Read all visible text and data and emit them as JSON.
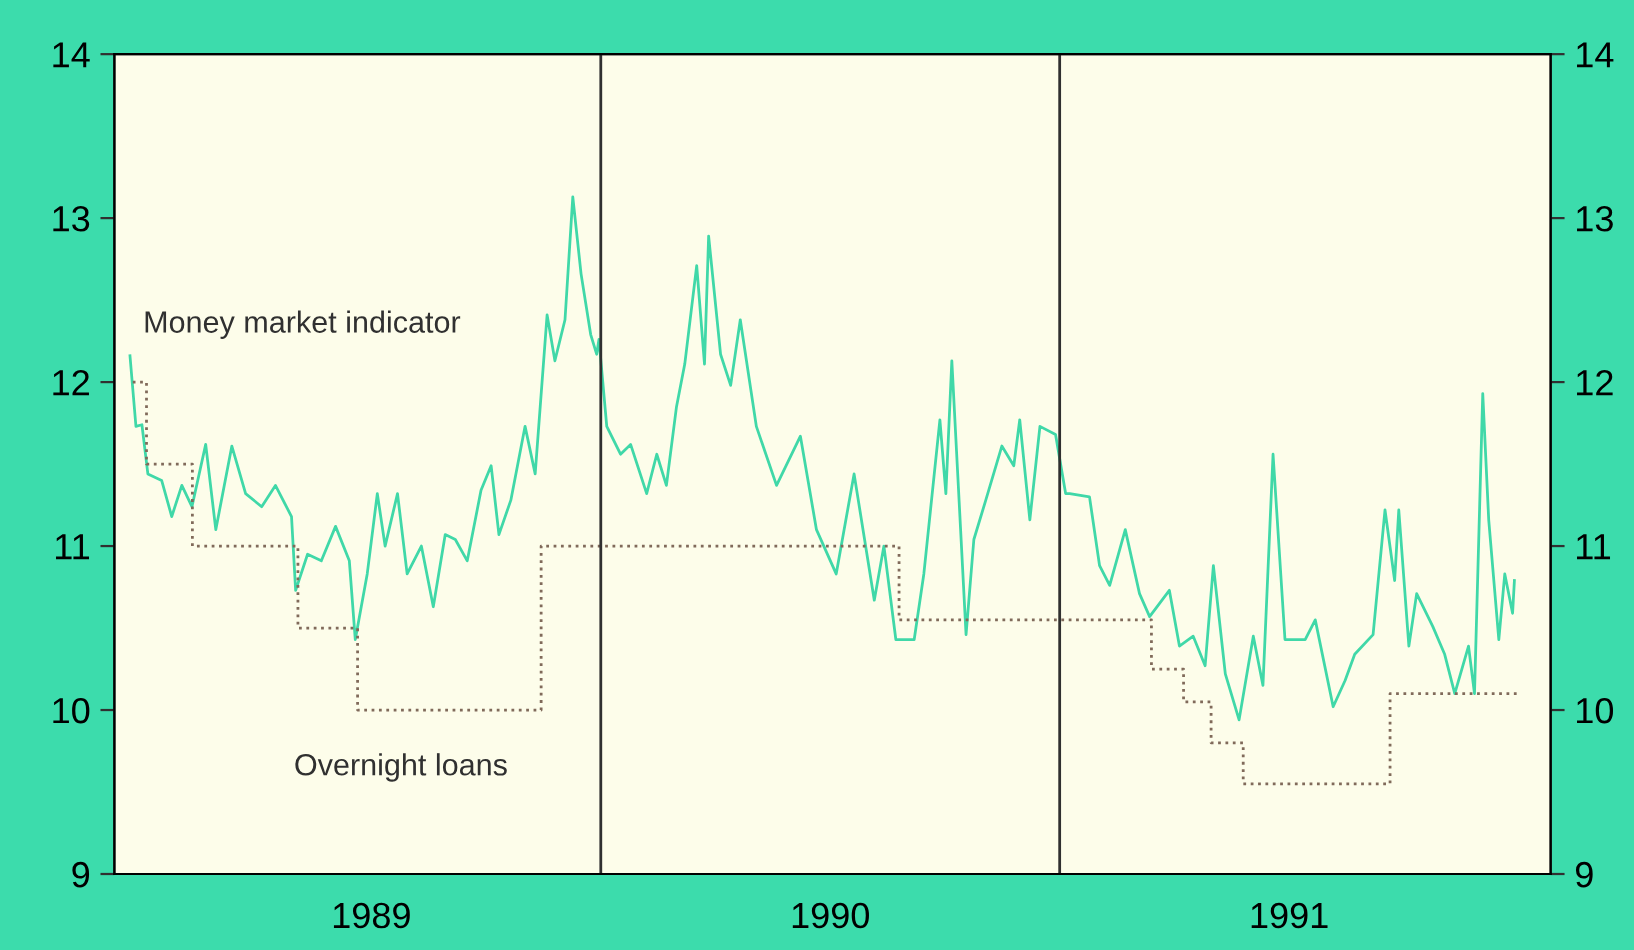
{
  "chart_data": {
    "type": "line",
    "xlim": [
      1988.94,
      1992.07
    ],
    "xticks": [
      {
        "value": 1989.5,
        "label": "1989"
      },
      {
        "value": 1990.5,
        "label": "1990"
      },
      {
        "value": 1991.5,
        "label": "1991"
      }
    ],
    "ylim": [
      9,
      14
    ],
    "yticks": [
      9,
      10,
      11,
      12,
      13,
      14
    ],
    "y2lim": [
      9,
      14
    ],
    "y2ticks": [
      9,
      10,
      11,
      12,
      13,
      14
    ],
    "grid": false,
    "legend": false,
    "marker": "none",
    "ref_lines": [
      {
        "axis": "x",
        "value": 1990,
        "label": null,
        "color": "#303030"
      },
      {
        "axis": "x",
        "value": 1991,
        "label": null,
        "color": "#303030"
      }
    ],
    "series": [
      {
        "name": "Money market indicator",
        "color": "#40d8a8",
        "line_style": "solid",
        "x": [
          1988.974,
          1988.987,
          1989.0,
          1989.013,
          1989.043,
          1989.065,
          1989.087,
          1989.109,
          1989.139,
          1989.161,
          1989.196,
          1989.226,
          1989.261,
          1989.291,
          1989.326,
          1989.335,
          1989.361,
          1989.391,
          1989.422,
          1989.452,
          1989.465,
          1989.491,
          1989.513,
          1989.53,
          1989.557,
          1989.578,
          1989.609,
          1989.635,
          1989.661,
          1989.683,
          1989.709,
          1989.739,
          1989.761,
          1989.778,
          1989.804,
          1989.835,
          1989.857,
          1989.883,
          1989.9,
          1989.922,
          1989.939,
          1989.957,
          1989.978,
          1989.991,
          1989.996,
          1990.013,
          1990.043,
          1990.065,
          1990.1,
          1990.122,
          1990.143,
          1990.165,
          1990.183,
          1990.209,
          1990.226,
          1990.235,
          1990.261,
          1990.283,
          1990.304,
          1990.339,
          1990.383,
          1990.435,
          1990.47,
          1990.513,
          1990.552,
          1990.596,
          1990.617,
          1990.643,
          1990.683,
          1990.704,
          1990.739,
          1990.752,
          1990.765,
          1990.796,
          1990.813,
          1990.839,
          1990.874,
          1990.9,
          1990.913,
          1990.935,
          1990.957,
          1990.991,
          1991.013,
          1991.022,
          1991.065,
          1991.087,
          1991.109,
          1991.143,
          1991.174,
          1991.196,
          1991.239,
          1991.261,
          1991.291,
          1991.317,
          1991.335,
          1991.361,
          1991.391,
          1991.422,
          1991.443,
          1991.465,
          1991.491,
          1991.535,
          1991.557,
          1991.596,
          1991.622,
          1991.643,
          1991.683,
          1991.709,
          1991.73,
          1991.739,
          1991.761,
          1991.778,
          1991.813,
          1991.839,
          1991.861,
          1991.891,
          1991.904,
          1991.922,
          1991.935,
          1991.957,
          1991.97,
          1991.987,
          1991.991
        ],
        "values": [
          12.16,
          11.73,
          11.74,
          11.44,
          11.4,
          11.18,
          11.37,
          11.24,
          11.62,
          11.1,
          11.61,
          11.32,
          11.24,
          11.37,
          11.18,
          10.73,
          10.95,
          10.91,
          11.12,
          10.91,
          10.43,
          10.83,
          11.32,
          11.0,
          11.32,
          10.83,
          11.0,
          10.63,
          11.07,
          11.04,
          10.91,
          11.34,
          11.49,
          11.07,
          11.28,
          11.73,
          11.44,
          12.41,
          12.13,
          12.38,
          13.13,
          12.66,
          12.29,
          12.17,
          12.26,
          11.73,
          11.56,
          11.62,
          11.32,
          11.56,
          11.37,
          11.85,
          12.11,
          12.71,
          12.11,
          12.89,
          12.17,
          11.98,
          12.38,
          11.73,
          11.37,
          11.67,
          11.1,
          10.83,
          11.44,
          10.67,
          11.0,
          10.43,
          10.43,
          10.83,
          11.77,
          11.32,
          12.13,
          10.46,
          11.04,
          11.28,
          11.61,
          11.49,
          11.77,
          11.16,
          11.73,
          11.68,
          11.32,
          11.32,
          11.3,
          10.88,
          10.76,
          11.1,
          10.71,
          10.57,
          10.73,
          10.39,
          10.45,
          10.27,
          10.88,
          10.22,
          9.94,
          10.45,
          10.15,
          11.56,
          10.43,
          10.43,
          10.55,
          10.02,
          10.18,
          10.34,
          10.46,
          11.22,
          10.79,
          11.22,
          10.39,
          10.71,
          10.51,
          10.34,
          10.1,
          10.39,
          10.1,
          11.93,
          11.16,
          10.43,
          10.83,
          10.59,
          10.79
        ]
      },
      {
        "name": "Overnight loans",
        "type": "step",
        "color": "#806a5a",
        "line_style": "dotted",
        "x": [
          1988.98,
          1989.01,
          1989.11,
          1989.34,
          1989.47,
          1989.87,
          1990.65,
          1991.2,
          1991.27,
          1991.33,
          1991.4,
          1991.72,
          1992.0
        ],
        "values": [
          12.0,
          11.5,
          11.0,
          10.5,
          10.0,
          11.0,
          10.55,
          10.25,
          10.05,
          9.8,
          9.55,
          10.1,
          10.1
        ]
      }
    ]
  }
}
